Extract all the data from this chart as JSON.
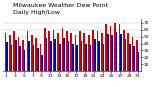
{
  "title": "Milwaukee Weather Dew Point",
  "subtitle": "Daily High/Low",
  "ylim": [
    0,
    75
  ],
  "yticks": [
    10,
    20,
    30,
    40,
    50,
    60,
    70
  ],
  "ytick_labels": [
    "10",
    "20",
    "30",
    "40",
    "50",
    "60",
    "70"
  ],
  "background_color": "#ffffff",
  "high_color": "#dd0000",
  "low_color": "#0000cc",
  "high_values": [
    55,
    52,
    58,
    50,
    45,
    58,
    52,
    48,
    40,
    62,
    58,
    60,
    55,
    62,
    58,
    55,
    52,
    58,
    55,
    52,
    60,
    58,
    55,
    68,
    65,
    70,
    68,
    60,
    55,
    50,
    45
  ],
  "low_values": [
    42,
    38,
    45,
    36,
    30,
    44,
    38,
    34,
    24,
    48,
    44,
    46,
    40,
    48,
    44,
    40,
    38,
    44,
    40,
    38,
    46,
    44,
    40,
    54,
    52,
    56,
    54,
    46,
    40,
    36,
    28
  ],
  "n_bars": 31,
  "xtick_positions": [
    1,
    3,
    5,
    7,
    9,
    11,
    13,
    15,
    17,
    19,
    21,
    23,
    25,
    27,
    29,
    31
  ],
  "xtick_labels": [
    "1",
    "3",
    "5",
    "7",
    "9",
    "11",
    "13",
    "15",
    "17",
    "19",
    "21",
    "23",
    "25",
    "27",
    "29",
    "31"
  ],
  "title_fontsize": 4.5,
  "tick_fontsize": 3.2,
  "bar_width": 0.38,
  "dpi": 100,
  "figw": 1.6,
  "figh": 0.87
}
